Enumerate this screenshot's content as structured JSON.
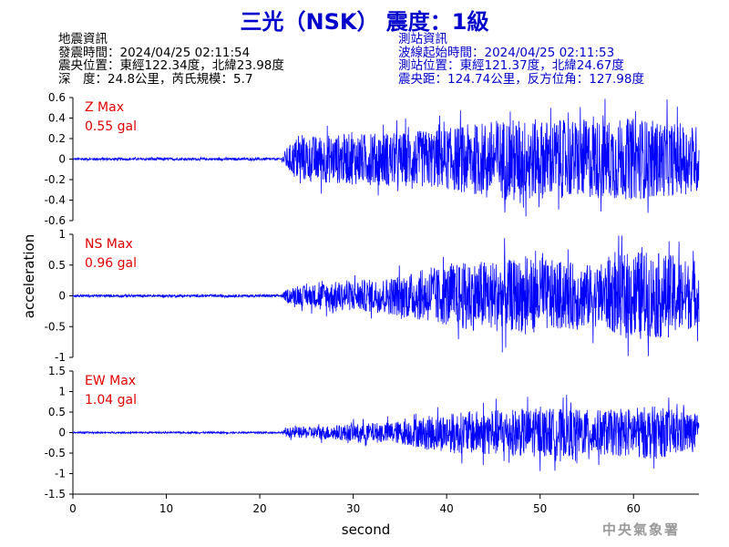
{
  "title": "三光（NSK） 震度：1級",
  "earthquake_info": {
    "heading": "地震資訊",
    "origin_time": "發震時間：2024/04/25 02:11:54",
    "epicenter": "震央位置：東經122.34度，北緯23.98度",
    "depth_magnitude": "深　度：24.8公里，芮氏規模：5.7"
  },
  "station_info": {
    "heading": "測站資訊",
    "wave_start": "波線起始時間：2024/04/25 02:11:53",
    "station_location": "測站位置：東經121.37度，北緯24.67度",
    "distance_azimuth": "震央距：124.74公里，反方位角：127.98度"
  },
  "credit": "中央氣象署",
  "colors": {
    "trace": "#0000ff",
    "title": "#0000cc",
    "peak_label": "#e00000",
    "credit": "#9a9a9a"
  },
  "chart_data": {
    "type": "line",
    "xlabel": "second",
    "ylabel": "acceleration",
    "xlim": [
      0,
      67
    ],
    "x_ticks": [
      0,
      10,
      20,
      30,
      40,
      50,
      60
    ],
    "grid": false,
    "panels": [
      {
        "component": "Z",
        "peak_label": "Z Max",
        "peak_value": "0.55 gal",
        "ylim": [
          -0.6,
          0.6
        ],
        "y_ticks": [
          -0.6,
          -0.4,
          -0.2,
          0,
          0.2,
          0.4,
          0.6
        ],
        "y_tick_labels": [
          "-0.6",
          "-0.4",
          "-0.2",
          "0",
          "0.2",
          "0.4",
          "0.6"
        ],
        "envelope": [
          {
            "t": 0,
            "amp": 0.012
          },
          {
            "t": 22.3,
            "amp": 0.012
          },
          {
            "t": 22.8,
            "amp": 0.1
          },
          {
            "t": 24,
            "amp": 0.22
          },
          {
            "t": 30,
            "amp": 0.25
          },
          {
            "t": 35,
            "amp": 0.26
          },
          {
            "t": 40,
            "amp": 0.3
          },
          {
            "t": 46,
            "amp": 0.4
          },
          {
            "t": 52,
            "amp": 0.38
          },
          {
            "t": 60,
            "amp": 0.4
          },
          {
            "t": 67,
            "amp": 0.33
          }
        ]
      },
      {
        "component": "NS",
        "peak_label": "NS Max",
        "peak_value": "0.96 gal",
        "ylim": [
          -1,
          1
        ],
        "y_ticks": [
          -1,
          -0.5,
          0,
          0.5,
          1
        ],
        "y_tick_labels": [
          "-1",
          "-0.5",
          "0",
          "0.5",
          "1"
        ],
        "envelope": [
          {
            "t": 0,
            "amp": 0.02
          },
          {
            "t": 22.3,
            "amp": 0.02
          },
          {
            "t": 23,
            "amp": 0.12
          },
          {
            "t": 27,
            "amp": 0.22
          },
          {
            "t": 33,
            "amp": 0.28
          },
          {
            "t": 37,
            "amp": 0.4
          },
          {
            "t": 42,
            "amp": 0.55
          },
          {
            "t": 44,
            "amp": 0.58
          },
          {
            "t": 50,
            "amp": 0.6
          },
          {
            "t": 56,
            "amp": 0.5
          },
          {
            "t": 60,
            "amp": 0.75
          },
          {
            "t": 65,
            "amp": 0.65
          },
          {
            "t": 67,
            "amp": 0.45
          }
        ]
      },
      {
        "component": "EW",
        "peak_label": "EW Max",
        "peak_value": "1.04 gal",
        "ylim": [
          -1.5,
          1.5
        ],
        "y_ticks": [
          -1.5,
          -1,
          -0.5,
          0,
          0.5,
          1,
          1.5
        ],
        "y_tick_labels": [
          "-1.5",
          "-1",
          "-0.5",
          "0",
          "0.5",
          "1",
          "1.5"
        ],
        "envelope": [
          {
            "t": 0,
            "amp": 0.02
          },
          {
            "t": 22.3,
            "amp": 0.02
          },
          {
            "t": 23,
            "amp": 0.12
          },
          {
            "t": 28,
            "amp": 0.18
          },
          {
            "t": 35,
            "amp": 0.28
          },
          {
            "t": 39,
            "amp": 0.45
          },
          {
            "t": 44,
            "amp": 0.55
          },
          {
            "t": 50,
            "amp": 0.6
          },
          {
            "t": 57,
            "amp": 0.55
          },
          {
            "t": 62,
            "amp": 0.65
          },
          {
            "t": 67,
            "amp": 0.45
          }
        ]
      }
    ]
  }
}
